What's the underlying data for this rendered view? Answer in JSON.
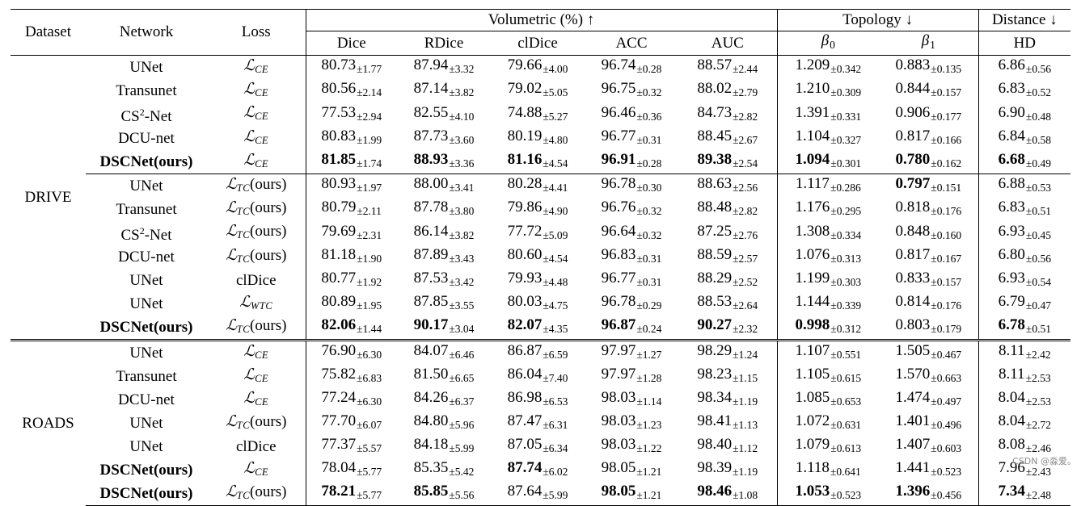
{
  "headers": {
    "dataset": "Dataset",
    "network": "Network",
    "loss": "Loss",
    "volumetric": "Volumetric (%) ↑",
    "topology": "Topology ↓",
    "distance": "Distance ↓",
    "dice": "Dice",
    "rdice": "RDice",
    "cldice": "clDice",
    "acc": "ACC",
    "auc": "AUC",
    "beta0": "β",
    "beta0_sub": "0",
    "beta1": "β",
    "beta1_sub": "1",
    "hd": "HD"
  },
  "datasets": [
    {
      "name": "DRIVE",
      "groups": [
        [
          {
            "net": "UNet",
            "loss": "CE",
            "vals": [
              [
                "80.73",
                "±1.77"
              ],
              [
                "87.94",
                "±3.32"
              ],
              [
                "79.66",
                "±4.00"
              ],
              [
                "96.74",
                "±0.28"
              ],
              [
                "88.57",
                "±2.44"
              ],
              [
                "1.209",
                "±0.342"
              ],
              [
                "0.883",
                "±0.135"
              ],
              [
                "6.86",
                "±0.56"
              ]
            ],
            "bold": []
          },
          {
            "net": "Transunet",
            "loss": "CE",
            "vals": [
              [
                "80.56",
                "±2.14"
              ],
              [
                "87.14",
                "±3.82"
              ],
              [
                "79.02",
                "±5.05"
              ],
              [
                "96.75",
                "±0.32"
              ],
              [
                "88.02",
                "±2.79"
              ],
              [
                "1.210",
                "±0.309"
              ],
              [
                "0.844",
                "±0.157"
              ],
              [
                "6.83",
                "±0.52"
              ]
            ],
            "bold": []
          },
          {
            "net": "CS2-Net",
            "loss": "CE",
            "vals": [
              [
                "77.53",
                "±2.94"
              ],
              [
                "82.55",
                "±4.10"
              ],
              [
                "74.88",
                "±5.27"
              ],
              [
                "96.46",
                "±0.36"
              ],
              [
                "84.73",
                "±2.82"
              ],
              [
                "1.391",
                "±0.331"
              ],
              [
                "0.906",
                "±0.177"
              ],
              [
                "6.90",
                "±0.48"
              ]
            ],
            "bold": []
          },
          {
            "net": "DCU-net",
            "loss": "CE",
            "vals": [
              [
                "80.83",
                "±1.99"
              ],
              [
                "87.73",
                "±3.60"
              ],
              [
                "80.19",
                "±4.80"
              ],
              [
                "96.77",
                "±0.31"
              ],
              [
                "88.45",
                "±2.67"
              ],
              [
                "1.104",
                "±0.327"
              ],
              [
                "0.817",
                "±0.166"
              ],
              [
                "6.84",
                "±0.58"
              ]
            ],
            "bold": []
          },
          {
            "net": "DSCNet(ours)",
            "netBold": true,
            "loss": "CE",
            "vals": [
              [
                "81.85",
                "±1.74"
              ],
              [
                "88.93",
                "±3.36"
              ],
              [
                "81.16",
                "±4.54"
              ],
              [
                "96.91",
                "±0.28"
              ],
              [
                "89.38",
                "±2.54"
              ],
              [
                "1.094",
                "±0.301"
              ],
              [
                "0.780",
                "±0.162"
              ],
              [
                "6.68",
                "±0.49"
              ]
            ],
            "bold": [
              0,
              1,
              2,
              3,
              4,
              5,
              6,
              7
            ]
          }
        ],
        [
          {
            "net": "UNet",
            "loss": "TC",
            "ours": true,
            "vals": [
              [
                "80.93",
                "±1.97"
              ],
              [
                "88.00",
                "±3.41"
              ],
              [
                "80.28",
                "±4.41"
              ],
              [
                "96.78",
                "±0.30"
              ],
              [
                "88.63",
                "±2.56"
              ],
              [
                "1.117",
                "±0.286"
              ],
              [
                "0.797",
                "±0.151"
              ],
              [
                "6.88",
                "±0.53"
              ]
            ],
            "bold": [
              6
            ]
          },
          {
            "net": "Transunet",
            "loss": "TC",
            "ours": true,
            "vals": [
              [
                "80.79",
                "±2.11"
              ],
              [
                "87.78",
                "±3.80"
              ],
              [
                "79.86",
                "±4.90"
              ],
              [
                "96.76",
                "±0.32"
              ],
              [
                "88.48",
                "±2.82"
              ],
              [
                "1.176",
                "±0.295"
              ],
              [
                "0.818",
                "±0.176"
              ],
              [
                "6.83",
                "±0.51"
              ]
            ],
            "bold": []
          },
          {
            "net": "CS2-Net",
            "loss": "TC",
            "ours": true,
            "vals": [
              [
                "79.69",
                "±2.31"
              ],
              [
                "86.14",
                "±3.82"
              ],
              [
                "77.72",
                "±5.09"
              ],
              [
                "96.64",
                "±0.32"
              ],
              [
                "87.25",
                "±2.76"
              ],
              [
                "1.308",
                "±0.334"
              ],
              [
                "0.848",
                "±0.160"
              ],
              [
                "6.93",
                "±0.45"
              ]
            ],
            "bold": []
          },
          {
            "net": "DCU-net",
            "loss": "TC",
            "ours": true,
            "vals": [
              [
                "81.18",
                "±1.90"
              ],
              [
                "87.89",
                "±3.43"
              ],
              [
                "80.60",
                "±4.54"
              ],
              [
                "96.83",
                "±0.31"
              ],
              [
                "88.59",
                "±2.57"
              ],
              [
                "1.076",
                "±0.313"
              ],
              [
                "0.817",
                "±0.167"
              ],
              [
                "6.80",
                "±0.56"
              ]
            ],
            "bold": []
          },
          {
            "net": "UNet",
            "loss": "clDice",
            "vals": [
              [
                "80.77",
                "±1.92"
              ],
              [
                "87.53",
                "±3.42"
              ],
              [
                "79.93",
                "±4.48"
              ],
              [
                "96.77",
                "±0.31"
              ],
              [
                "88.29",
                "±2.52"
              ],
              [
                "1.199",
                "±0.303"
              ],
              [
                "0.833",
                "±0.157"
              ],
              [
                "6.93",
                "±0.54"
              ]
            ],
            "bold": []
          },
          {
            "net": "UNet",
            "loss": "WTC",
            "vals": [
              [
                "80.89",
                "±1.95"
              ],
              [
                "87.85",
                "±3.55"
              ],
              [
                "80.03",
                "±4.75"
              ],
              [
                "96.78",
                "±0.29"
              ],
              [
                "88.53",
                "±2.64"
              ],
              [
                "1.144",
                "±0.339"
              ],
              [
                "0.814",
                "±0.176"
              ],
              [
                "6.79",
                "±0.47"
              ]
            ],
            "bold": []
          },
          {
            "net": "DSCNet(ours)",
            "netBold": true,
            "loss": "TC",
            "ours": true,
            "vals": [
              [
                "82.06",
                "±1.44"
              ],
              [
                "90.17",
                "±3.04"
              ],
              [
                "82.07",
                "±4.35"
              ],
              [
                "96.87",
                "±0.24"
              ],
              [
                "90.27",
                "±2.32"
              ],
              [
                "0.998",
                "±0.312"
              ],
              [
                "0.803",
                "±0.179"
              ],
              [
                "6.78",
                "±0.51"
              ]
            ],
            "bold": [
              0,
              1,
              2,
              3,
              4,
              5,
              7
            ]
          }
        ]
      ]
    },
    {
      "name": "ROADS",
      "groups": [
        [
          {
            "net": "UNet",
            "loss": "CE",
            "vals": [
              [
                "76.90",
                "±6.30"
              ],
              [
                "84.07",
                "±6.46"
              ],
              [
                "86.87",
                "±6.59"
              ],
              [
                "97.97",
                "±1.27"
              ],
              [
                "98.29",
                "±1.24"
              ],
              [
                "1.107",
                "±0.551"
              ],
              [
                "1.505",
                "±0.467"
              ],
              [
                "8.11",
                "±2.42"
              ]
            ],
            "bold": []
          },
          {
            "net": "Transunet",
            "loss": "CE",
            "vals": [
              [
                "75.82",
                "±6.83"
              ],
              [
                "81.50",
                "±6.65"
              ],
              [
                "86.04",
                "±7.40"
              ],
              [
                "97.97",
                "±1.28"
              ],
              [
                "98.23",
                "±1.15"
              ],
              [
                "1.105",
                "±0.615"
              ],
              [
                "1.570",
                "±0.663"
              ],
              [
                "8.11",
                "±2.53"
              ]
            ],
            "bold": []
          },
          {
            "net": "DCU-net",
            "loss": "CE",
            "vals": [
              [
                "77.24",
                "±6.30"
              ],
              [
                "84.26",
                "±6.37"
              ],
              [
                "86.98",
                "±6.53"
              ],
              [
                "98.03",
                "±1.14"
              ],
              [
                "98.34",
                "±1.19"
              ],
              [
                "1.085",
                "±0.653"
              ],
              [
                "1.474",
                "±0.497"
              ],
              [
                "8.04",
                "±2.53"
              ]
            ],
            "bold": []
          },
          {
            "net": "UNet",
            "loss": "TC",
            "ours": true,
            "vals": [
              [
                "77.70",
                "±6.07"
              ],
              [
                "84.80",
                "±5.96"
              ],
              [
                "87.47",
                "±6.31"
              ],
              [
                "98.03",
                "±1.23"
              ],
              [
                "98.41",
                "±1.13"
              ],
              [
                "1.072",
                "±0.631"
              ],
              [
                "1.401",
                "±0.496"
              ],
              [
                "8.04",
                "±2.72"
              ]
            ],
            "bold": []
          },
          {
            "net": "UNet",
            "loss": "clDice",
            "vals": [
              [
                "77.37",
                "±5.57"
              ],
              [
                "84.18",
                "±5.99"
              ],
              [
                "87.05",
                "±6.34"
              ],
              [
                "98.03",
                "±1.22"
              ],
              [
                "98.40",
                "±1.12"
              ],
              [
                "1.079",
                "±0.613"
              ],
              [
                "1.407",
                "±0.603"
              ],
              [
                "8.08",
                "±2.46"
              ]
            ],
            "bold": []
          },
          {
            "net": "DSCNet(ours)",
            "netBold": true,
            "loss": "CE",
            "vals": [
              [
                "78.04",
                "±5.77"
              ],
              [
                "85.35",
                "±5.42"
              ],
              [
                "87.74",
                "±6.02"
              ],
              [
                "98.05",
                "±1.21"
              ],
              [
                "98.39",
                "±1.19"
              ],
              [
                "1.118",
                "±0.641"
              ],
              [
                "1.441",
                "±0.523"
              ],
              [
                "7.96",
                "±2.43"
              ]
            ],
            "bold": [
              2
            ]
          },
          {
            "net": "DSCNet(ours)",
            "netBold": true,
            "loss": "TC",
            "ours": true,
            "vals": [
              [
                "78.21",
                "±5.77"
              ],
              [
                "85.85",
                "±5.56"
              ],
              [
                "87.64",
                "±5.99"
              ],
              [
                "98.05",
                "±1.21"
              ],
              [
                "98.46",
                "±1.08"
              ],
              [
                "1.053",
                "±0.523"
              ],
              [
                "1.396",
                "±0.456"
              ],
              [
                "7.34",
                "±2.48"
              ]
            ],
            "bold": [
              0,
              1,
              3,
              4,
              5,
              6,
              7
            ]
          }
        ]
      ]
    }
  ],
  "loss_glyph": "ℒ",
  "ours_label": "(ours)",
  "watermark": "CSDN @淼爱。"
}
